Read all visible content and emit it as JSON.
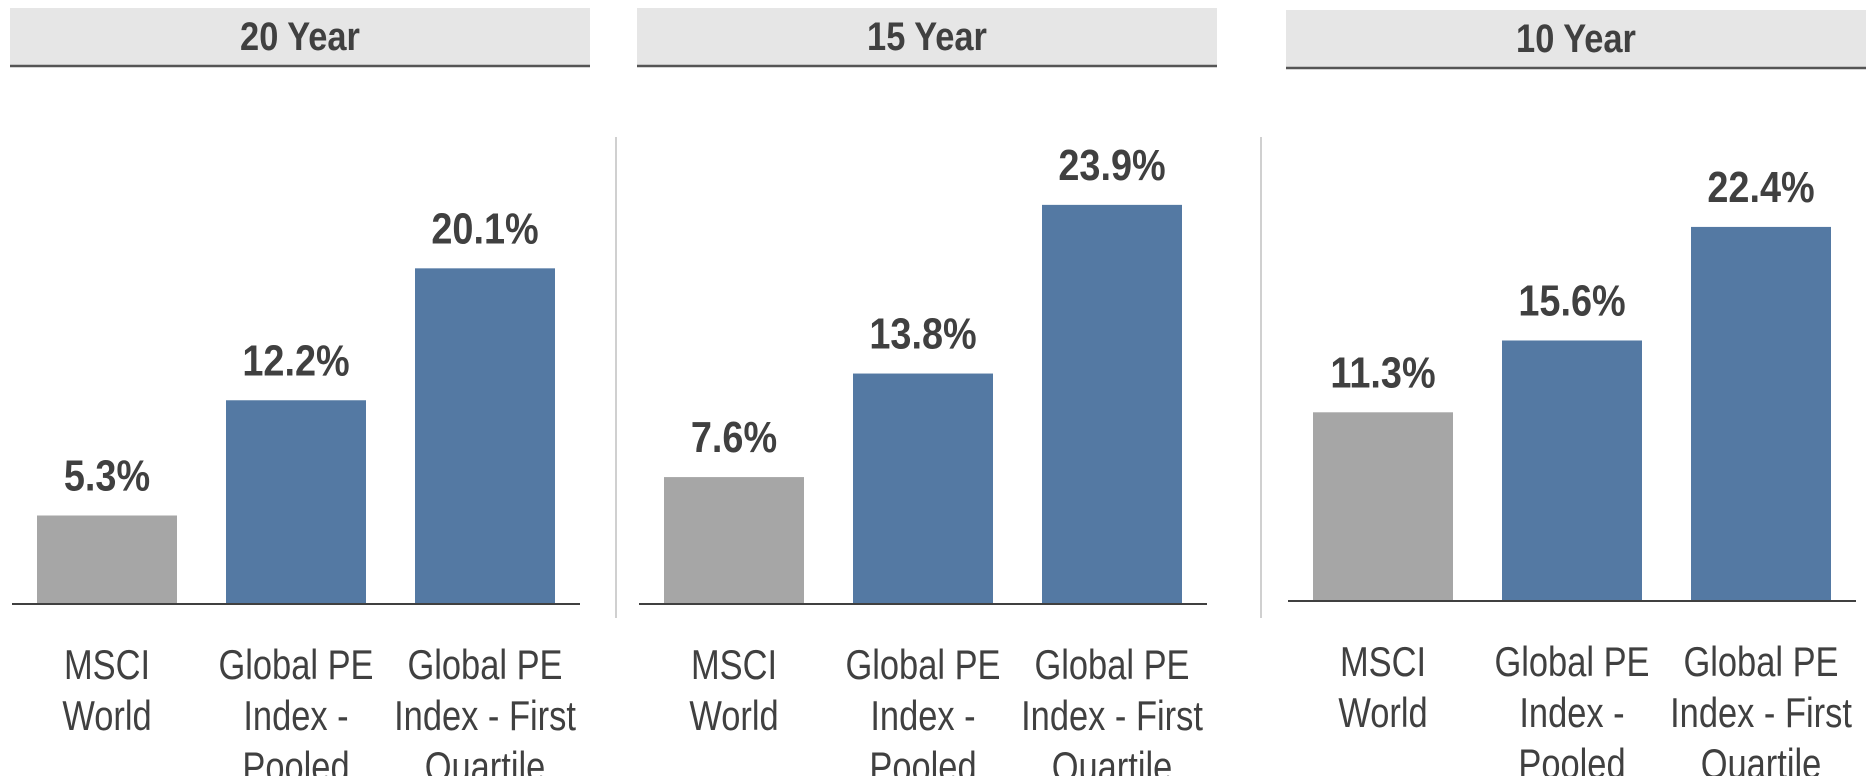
{
  "chart_data": [
    {
      "type": "bar",
      "title": "20 Year",
      "categories": [
        "MSCI World",
        "Global PE Index - Pooled",
        "Global PE Index - First Quartile"
      ],
      "values": [
        5.3,
        12.2,
        20.1
      ],
      "value_labels": [
        "5.3%",
        "12.2%",
        "20.1%"
      ],
      "colors": [
        "#a6a6a6",
        "#5479a3",
        "#5479a3"
      ]
    },
    {
      "type": "bar",
      "title": "15 Year",
      "categories": [
        "MSCI World",
        "Global PE Index - Pooled",
        "Global PE Index - First Quartile"
      ],
      "values": [
        7.6,
        13.8,
        23.9
      ],
      "value_labels": [
        "7.6%",
        "13.8%",
        "23.9%"
      ],
      "colors": [
        "#a6a6a6",
        "#5479a3",
        "#5479a3"
      ]
    },
    {
      "type": "bar",
      "title": "10 Year",
      "categories": [
        "MSCI World",
        "Global PE Index - Pooled",
        "Global PE Index - First Quartile"
      ],
      "values": [
        11.3,
        15.6,
        22.4
      ],
      "value_labels": [
        "11.3%",
        "15.6%",
        "22.4%"
      ],
      "colors": [
        "#a6a6a6",
        "#5479a3",
        "#5479a3"
      ]
    }
  ]
}
